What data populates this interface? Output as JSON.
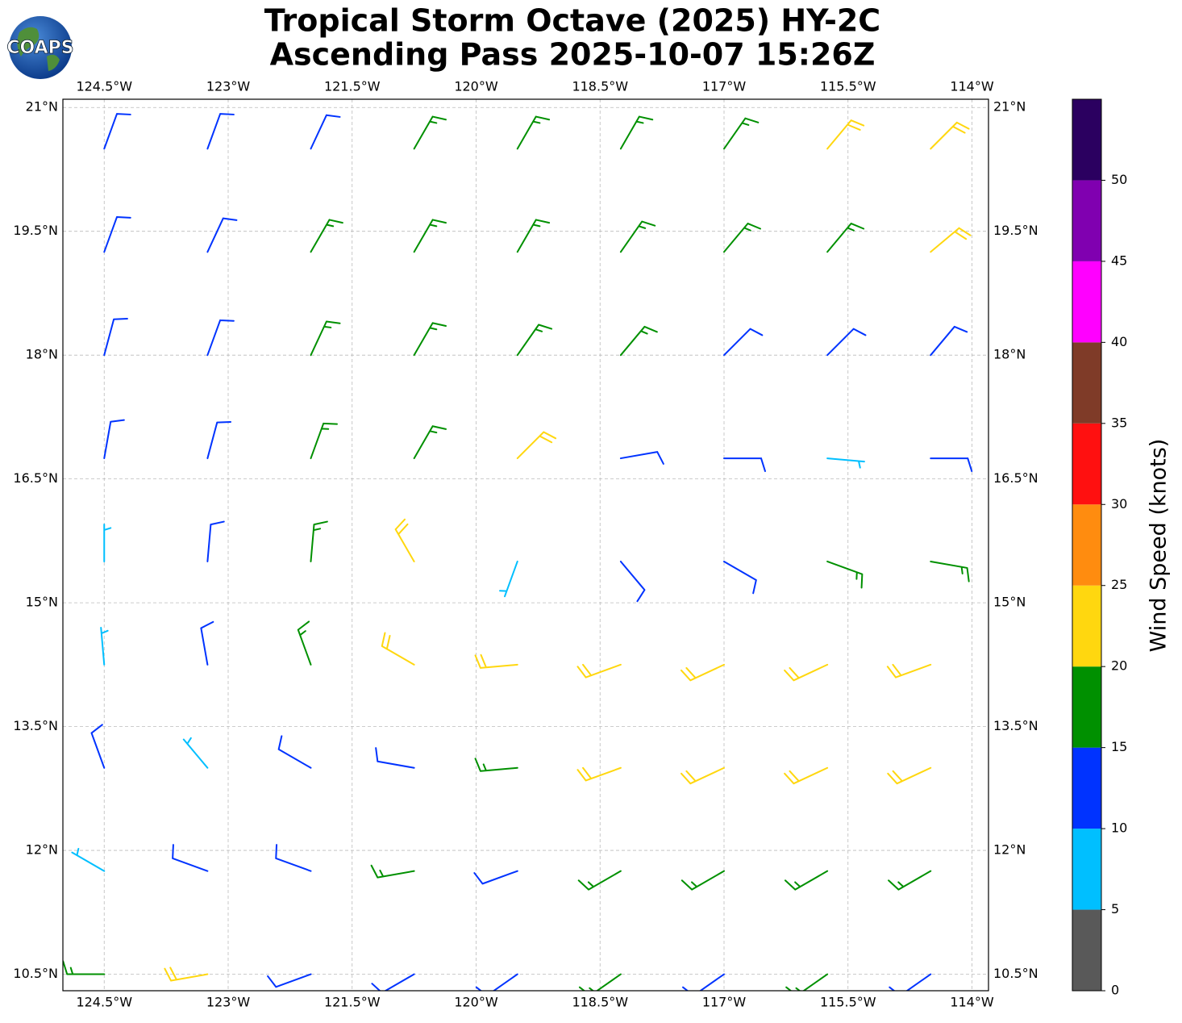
{
  "chart_data": {
    "type": "barbs",
    "title": "Tropical Storm Octave (2025) HY-2C",
    "subtitle": "Ascending Pass 2025-10-07 15:26Z",
    "logo": "COAPS",
    "xlim": [
      -125.0,
      -113.8
    ],
    "ylim": [
      10.3,
      21.1
    ],
    "xticks": [
      {
        "value": -124.5,
        "label": "124.5°W"
      },
      {
        "value": -123,
        "label": "123°W"
      },
      {
        "value": -121.5,
        "label": "121.5°W"
      },
      {
        "value": -120,
        "label": "120°W"
      },
      {
        "value": -118.5,
        "label": "118.5°W"
      },
      {
        "value": -117,
        "label": "117°W"
      },
      {
        "value": -115.5,
        "label": "115.5°W"
      },
      {
        "value": -114,
        "label": "114°W"
      }
    ],
    "yticks": [
      {
        "value": 21,
        "label": "21°N"
      },
      {
        "value": 19.5,
        "label": "19.5°N"
      },
      {
        "value": 18,
        "label": "18°N"
      },
      {
        "value": 16.5,
        "label": "16.5°N"
      },
      {
        "value": 15,
        "label": "15°N"
      },
      {
        "value": 13.5,
        "label": "13.5°N"
      },
      {
        "value": 12,
        "label": "12°N"
      },
      {
        "value": 10.5,
        "label": "10.5°N"
      }
    ],
    "grid": true,
    "barbs": {
      "lon": [
        -124.5,
        -123.25,
        -122,
        -120.75,
        -119.5,
        -118.25,
        -117,
        -115.75,
        -114.5
      ],
      "lat": [
        20.5,
        19.25,
        18,
        16.75,
        15.5,
        14.25,
        13,
        11.75,
        10.5
      ],
      "speed": [
        [
          12,
          12,
          14,
          16,
          17,
          17,
          18,
          21,
          22
        ],
        [
          12,
          14,
          16,
          17,
          17,
          17,
          17,
          17,
          22
        ],
        [
          12,
          14,
          16,
          17,
          17,
          16,
          12,
          10,
          14
        ],
        [
          12,
          14,
          17,
          18,
          23,
          14,
          12,
          8,
          12
        ],
        [
          9,
          12,
          16,
          23,
          5,
          12,
          14,
          16,
          17
        ],
        [
          8,
          12,
          16,
          22,
          24,
          22,
          21,
          21,
          22
        ],
        [
          12,
          9,
          11,
          14,
          17,
          22,
          22,
          22,
          22
        ],
        [
          9,
          10,
          14,
          16,
          14,
          17,
          17,
          19,
          16
        ],
        [
          17,
          21,
          14,
          12,
          14,
          16,
          14,
          16,
          14
        ]
      ],
      "direction": [
        [
          20,
          20,
          25,
          30,
          30,
          30,
          35,
          40,
          45
        ],
        [
          20,
          25,
          30,
          30,
          30,
          35,
          40,
          40,
          50
        ],
        [
          15,
          20,
          25,
          30,
          35,
          40,
          45,
          45,
          40
        ],
        [
          10,
          15,
          20,
          30,
          45,
          80,
          90,
          95,
          90
        ],
        [
          0,
          5,
          5,
          330,
          200,
          140,
          120,
          110,
          100
        ],
        [
          355,
          350,
          340,
          300,
          265,
          250,
          245,
          245,
          250
        ],
        [
          340,
          320,
          300,
          280,
          265,
          250,
          245,
          245,
          245
        ],
        [
          300,
          290,
          290,
          260,
          250,
          240,
          240,
          240,
          240
        ],
        [
          270,
          260,
          250,
          240,
          235,
          235,
          235,
          235,
          235
        ]
      ]
    },
    "colorbar": {
      "label": "Wind Speed (knots)",
      "clim": [
        0,
        55
      ],
      "bounds": [
        0,
        5,
        10,
        15,
        20,
        25,
        30,
        35,
        40,
        45,
        50,
        55
      ],
      "colors": [
        "#595959",
        "#00bfff",
        "#0033ff",
        "#009000",
        "#ffd70f",
        "#ff8c0f",
        "#ff1010",
        "#7f3b28",
        "#ff00ff",
        "#8000b0",
        "#2b0060"
      ],
      "ticks": [
        0,
        5,
        10,
        15,
        20,
        25,
        30,
        35,
        40,
        45,
        50
      ]
    }
  }
}
